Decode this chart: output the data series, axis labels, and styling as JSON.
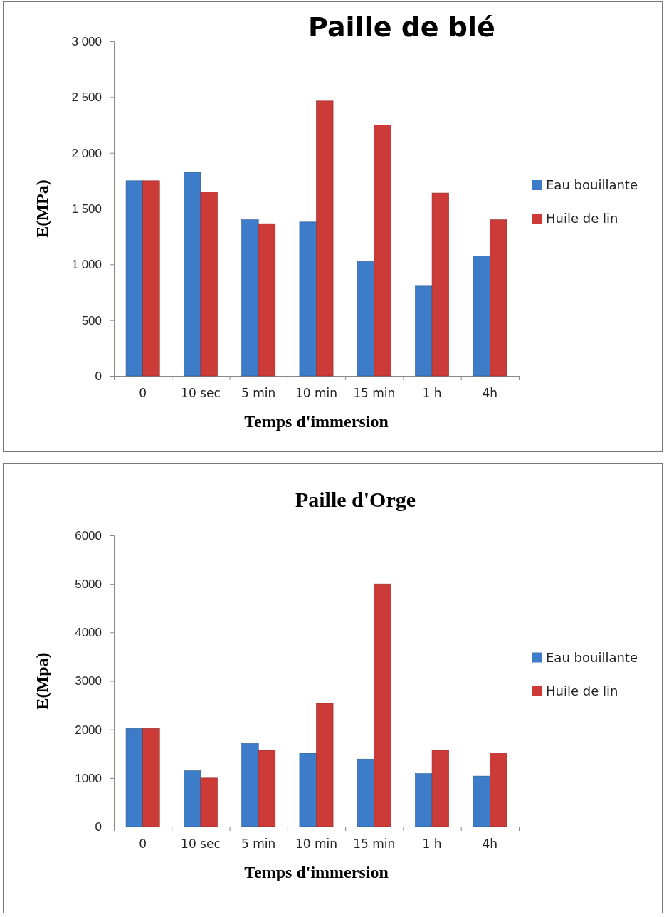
{
  "chart_data": [
    {
      "type": "bar",
      "title": "Paille de blé",
      "xlabel": "Temps d'immersion",
      "ylabel": "E(MPa)",
      "categories": [
        "0",
        "10 sec",
        "5 min",
        "10 min",
        "15 min",
        "1 h",
        "4h"
      ],
      "series": [
        {
          "name": "Eau bouillante",
          "color": "#3c7cc8",
          "values": [
            1750,
            1825,
            1400,
            1380,
            1025,
            805,
            1075
          ]
        },
        {
          "name": "Huile de lin",
          "color": "#cc3b38",
          "values": [
            1750,
            1650,
            1365,
            2465,
            2250,
            1640,
            1400
          ]
        }
      ],
      "ylim": [
        0,
        3000
      ],
      "yticks": [
        0,
        500,
        {
          "value": 1000,
          "label": "1 000"
        },
        {
          "value": 1500,
          "label": "1 500"
        },
        {
          "value": 2000,
          "label": "2 000"
        },
        {
          "value": 2500,
          "label": "2 500"
        },
        {
          "value": 3000,
          "label": "3 000"
        }
      ],
      "legend": "right",
      "grid": false
    },
    {
      "type": "bar",
      "title": "Paille d'Orge",
      "xlabel": "Temps d'immersion",
      "ylabel": "E(Mpa)",
      "categories": [
        "0",
        "10 sec",
        "5 min",
        "10 min",
        "15 min",
        "1 h",
        "4h"
      ],
      "series": [
        {
          "name": "Eau bouillante",
          "color": "#3c7cc8",
          "values": [
            2020,
            1150,
            1710,
            1510,
            1390,
            1090,
            1040
          ]
        },
        {
          "name": "Huile de lin",
          "color": "#cc3b38",
          "values": [
            2020,
            1000,
            1570,
            2540,
            5000,
            1570,
            1520
          ]
        }
      ],
      "ylim": [
        0,
        6000
      ],
      "yticks": [
        0,
        1000,
        2000,
        3000,
        4000,
        5000,
        6000
      ],
      "legend": "right",
      "grid": false
    }
  ]
}
